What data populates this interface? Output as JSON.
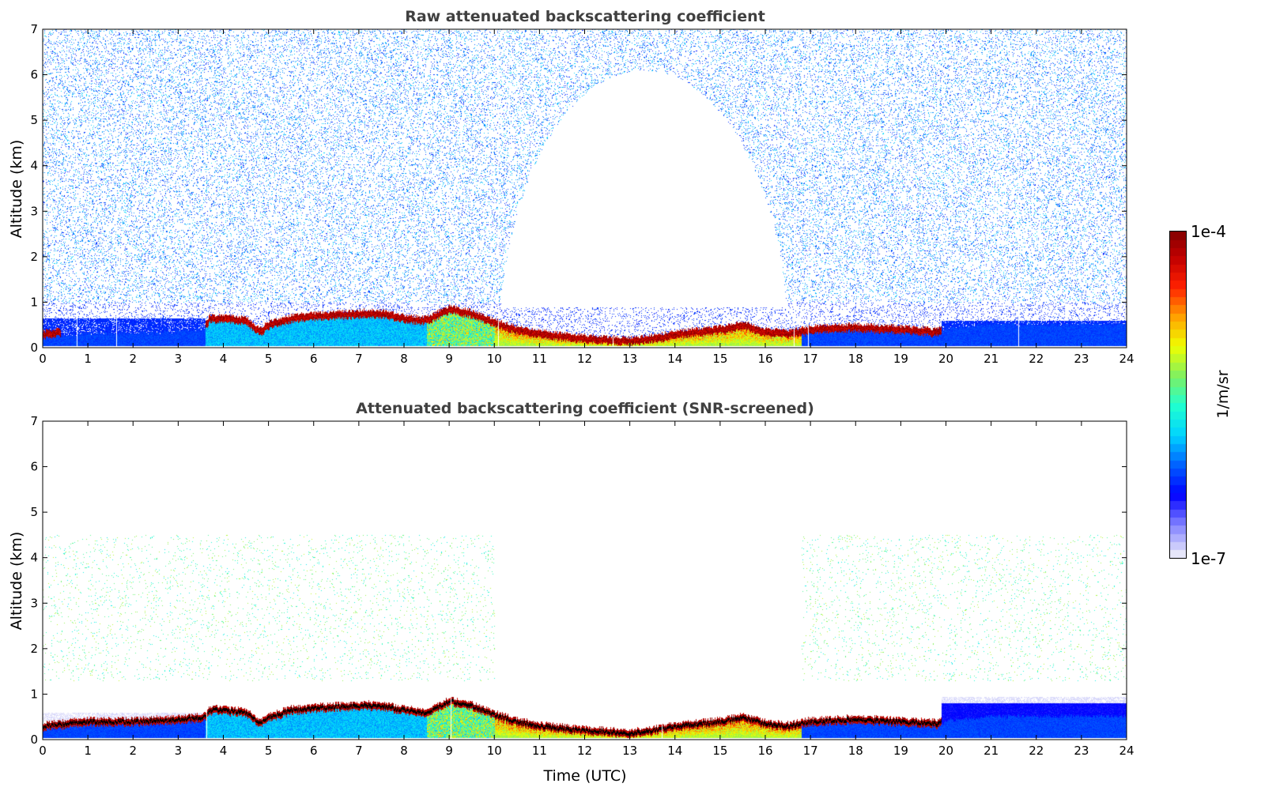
{
  "chart_data": [
    {
      "type": "heatmap",
      "title": "Raw attenuated backscattering coefficient",
      "xlabel": "",
      "ylabel": "Altitude (km)",
      "xlim": [
        0,
        24
      ],
      "ylim": [
        0,
        7
      ],
      "xticks": [
        0,
        1,
        2,
        3,
        4,
        5,
        6,
        7,
        8,
        9,
        10,
        11,
        12,
        13,
        14,
        15,
        16,
        17,
        18,
        19,
        20,
        21,
        22,
        23,
        24
      ],
      "yticks": [
        0,
        1,
        2,
        3,
        4,
        5,
        6,
        7
      ],
      "screened": false
    },
    {
      "type": "heatmap",
      "title": "Attenuated backscattering coefficient (SNR-screened)",
      "xlabel": "Time (UTC)",
      "ylabel": "Altitude (km)",
      "xlim": [
        0,
        24
      ],
      "ylim": [
        0,
        7
      ],
      "xticks": [
        0,
        1,
        2,
        3,
        4,
        5,
        6,
        7,
        8,
        9,
        10,
        11,
        12,
        13,
        14,
        15,
        16,
        17,
        18,
        19,
        20,
        21,
        22,
        23,
        24
      ],
      "yticks": [
        0,
        1,
        2,
        3,
        4,
        5,
        6,
        7
      ],
      "screened": true
    }
  ],
  "layer_profile": {
    "hours": [
      0,
      0.5,
      1,
      2,
      3,
      3.6,
      3.7,
      4,
      4.5,
      4.8,
      5,
      5.5,
      6,
      7,
      7.5,
      8,
      8.5,
      9,
      9.5,
      10,
      10.5,
      11,
      12,
      13,
      13.5,
      14,
      15,
      15.5,
      16,
      16.5,
      17,
      18,
      19,
      19.8,
      20,
      21,
      22,
      23,
      24
    ],
    "layer_top_km": [
      0.3,
      0.35,
      0.4,
      0.4,
      0.45,
      0.5,
      0.65,
      0.65,
      0.6,
      0.35,
      0.5,
      0.65,
      0.7,
      0.75,
      0.75,
      0.65,
      0.6,
      0.85,
      0.75,
      0.55,
      0.4,
      0.3,
      0.2,
      0.15,
      0.2,
      0.3,
      0.4,
      0.5,
      0.35,
      0.3,
      0.4,
      0.45,
      0.4,
      0.35,
      0.5,
      0.6,
      0.6,
      0.6,
      0.6
    ]
  },
  "colorbar": {
    "label": "1/m/sr",
    "min_label": "1e-7",
    "max_label": "1e-4",
    "scale": "log",
    "range": [
      1e-07,
      0.0001
    ],
    "colormap": [
      "#e6e6fa",
      "#8080ff",
      "#0000ff",
      "#0060ff",
      "#00d4ff",
      "#20ffd0",
      "#80f060",
      "#f0ff00",
      "#ffa000",
      "#ff2000",
      "#c00000",
      "#7a0000"
    ]
  }
}
